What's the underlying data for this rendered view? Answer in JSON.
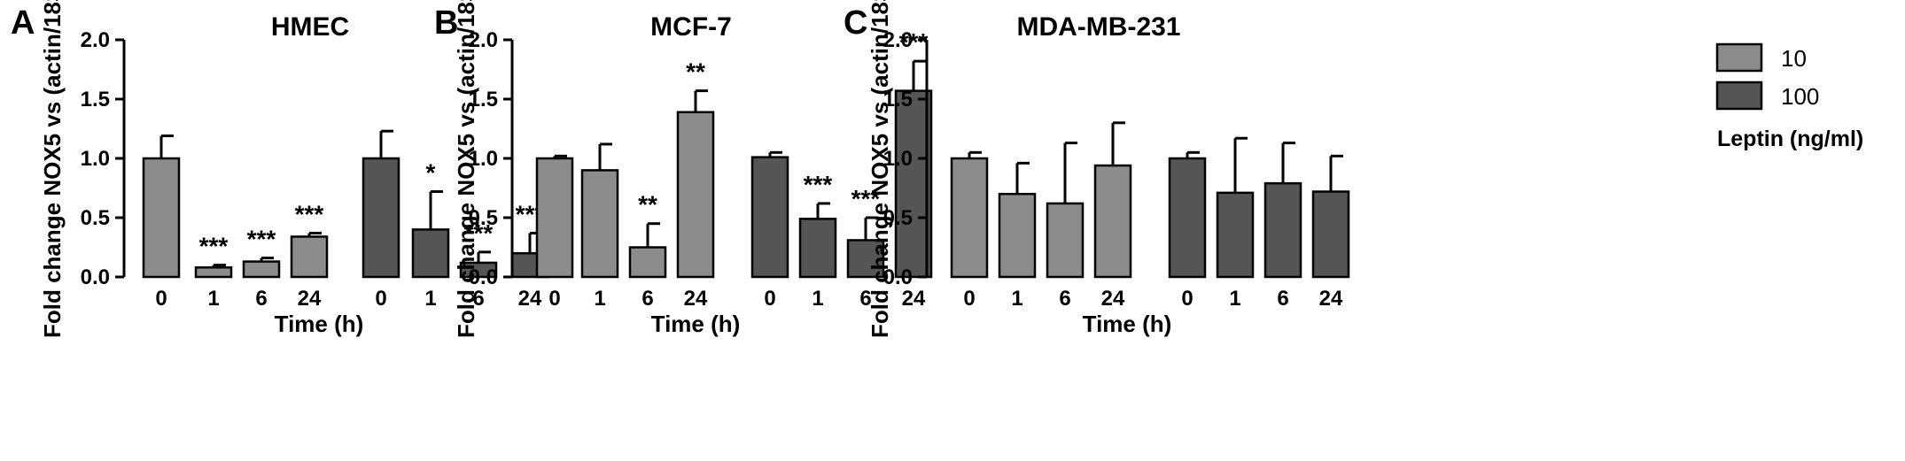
{
  "colors": {
    "series_10": "#8c8c8c",
    "series_100": "#555555",
    "axis": "#000000"
  },
  "legend": {
    "items": [
      {
        "label": "10",
        "color": "#8c8c8c"
      },
      {
        "label": "100",
        "color": "#555555"
      }
    ],
    "title": "Leptin (ng/ml)",
    "placement": "top-right"
  },
  "chart_data": [
    {
      "panel": "A",
      "type": "bar",
      "title": "HMEC",
      "xlabel": "Time (h)",
      "ylabel": "Fold change NOX5 vs (actin/18S)",
      "ylim": [
        0,
        2.0
      ],
      "yticks": [
        "0.0",
        "0.5",
        "1.0",
        "1.5",
        "2.0"
      ],
      "categories": [
        "0",
        "1",
        "6",
        "24"
      ],
      "series": [
        {
          "name": "10",
          "values": [
            1.0,
            0.08,
            0.13,
            0.34
          ],
          "errors": [
            0.19,
            0.02,
            0.03,
            0.03
          ],
          "significance": [
            "",
            "***",
            "***",
            "***"
          ]
        },
        {
          "name": "100",
          "values": [
            1.0,
            0.4,
            0.12,
            0.2
          ],
          "errors": [
            0.23,
            0.32,
            0.09,
            0.17
          ],
          "significance": [
            "",
            "*",
            "***",
            "***"
          ]
        }
      ]
    },
    {
      "panel": "B",
      "type": "bar",
      "title": "MCF-7",
      "xlabel": "Time (h)",
      "ylabel": "Fold change NOX5 vs (actin/18S)",
      "ylim": [
        0,
        2.0
      ],
      "yticks": [
        "0.0",
        "0.5",
        "1.0",
        "1.5",
        "2.0"
      ],
      "categories": [
        "0",
        "1",
        "6",
        "24"
      ],
      "series": [
        {
          "name": "10",
          "values": [
            1.0,
            0.9,
            0.25,
            1.39
          ],
          "errors": [
            0.02,
            0.22,
            0.2,
            0.18
          ],
          "significance": [
            "",
            "",
            "**",
            "**"
          ]
        },
        {
          "name": "100",
          "values": [
            1.01,
            0.49,
            0.31,
            1.57
          ],
          "errors": [
            0.04,
            0.13,
            0.19,
            0.25
          ],
          "significance": [
            "",
            "***",
            "***",
            "***"
          ]
        }
      ]
    },
    {
      "panel": "C",
      "type": "bar",
      "title": "MDA-MB-231",
      "xlabel": "Time (h)",
      "ylabel": "Fold change NOX5 vs (actin/18S)",
      "ylim": [
        0,
        2.0
      ],
      "yticks": [
        "0.0",
        "0.5",
        "1.0",
        "1.5",
        "2.0"
      ],
      "categories": [
        "0",
        "1",
        "6",
        "24"
      ],
      "series": [
        {
          "name": "10",
          "values": [
            1.0,
            0.7,
            0.62,
            0.94
          ],
          "errors": [
            0.05,
            0.26,
            0.51,
            0.36
          ],
          "significance": [
            "",
            "",
            "",
            ""
          ]
        },
        {
          "name": "100",
          "values": [
            1.0,
            0.71,
            0.79,
            0.72
          ],
          "errors": [
            0.05,
            0.46,
            0.34,
            0.3
          ],
          "significance": [
            "",
            "",
            "",
            ""
          ]
        }
      ]
    }
  ]
}
